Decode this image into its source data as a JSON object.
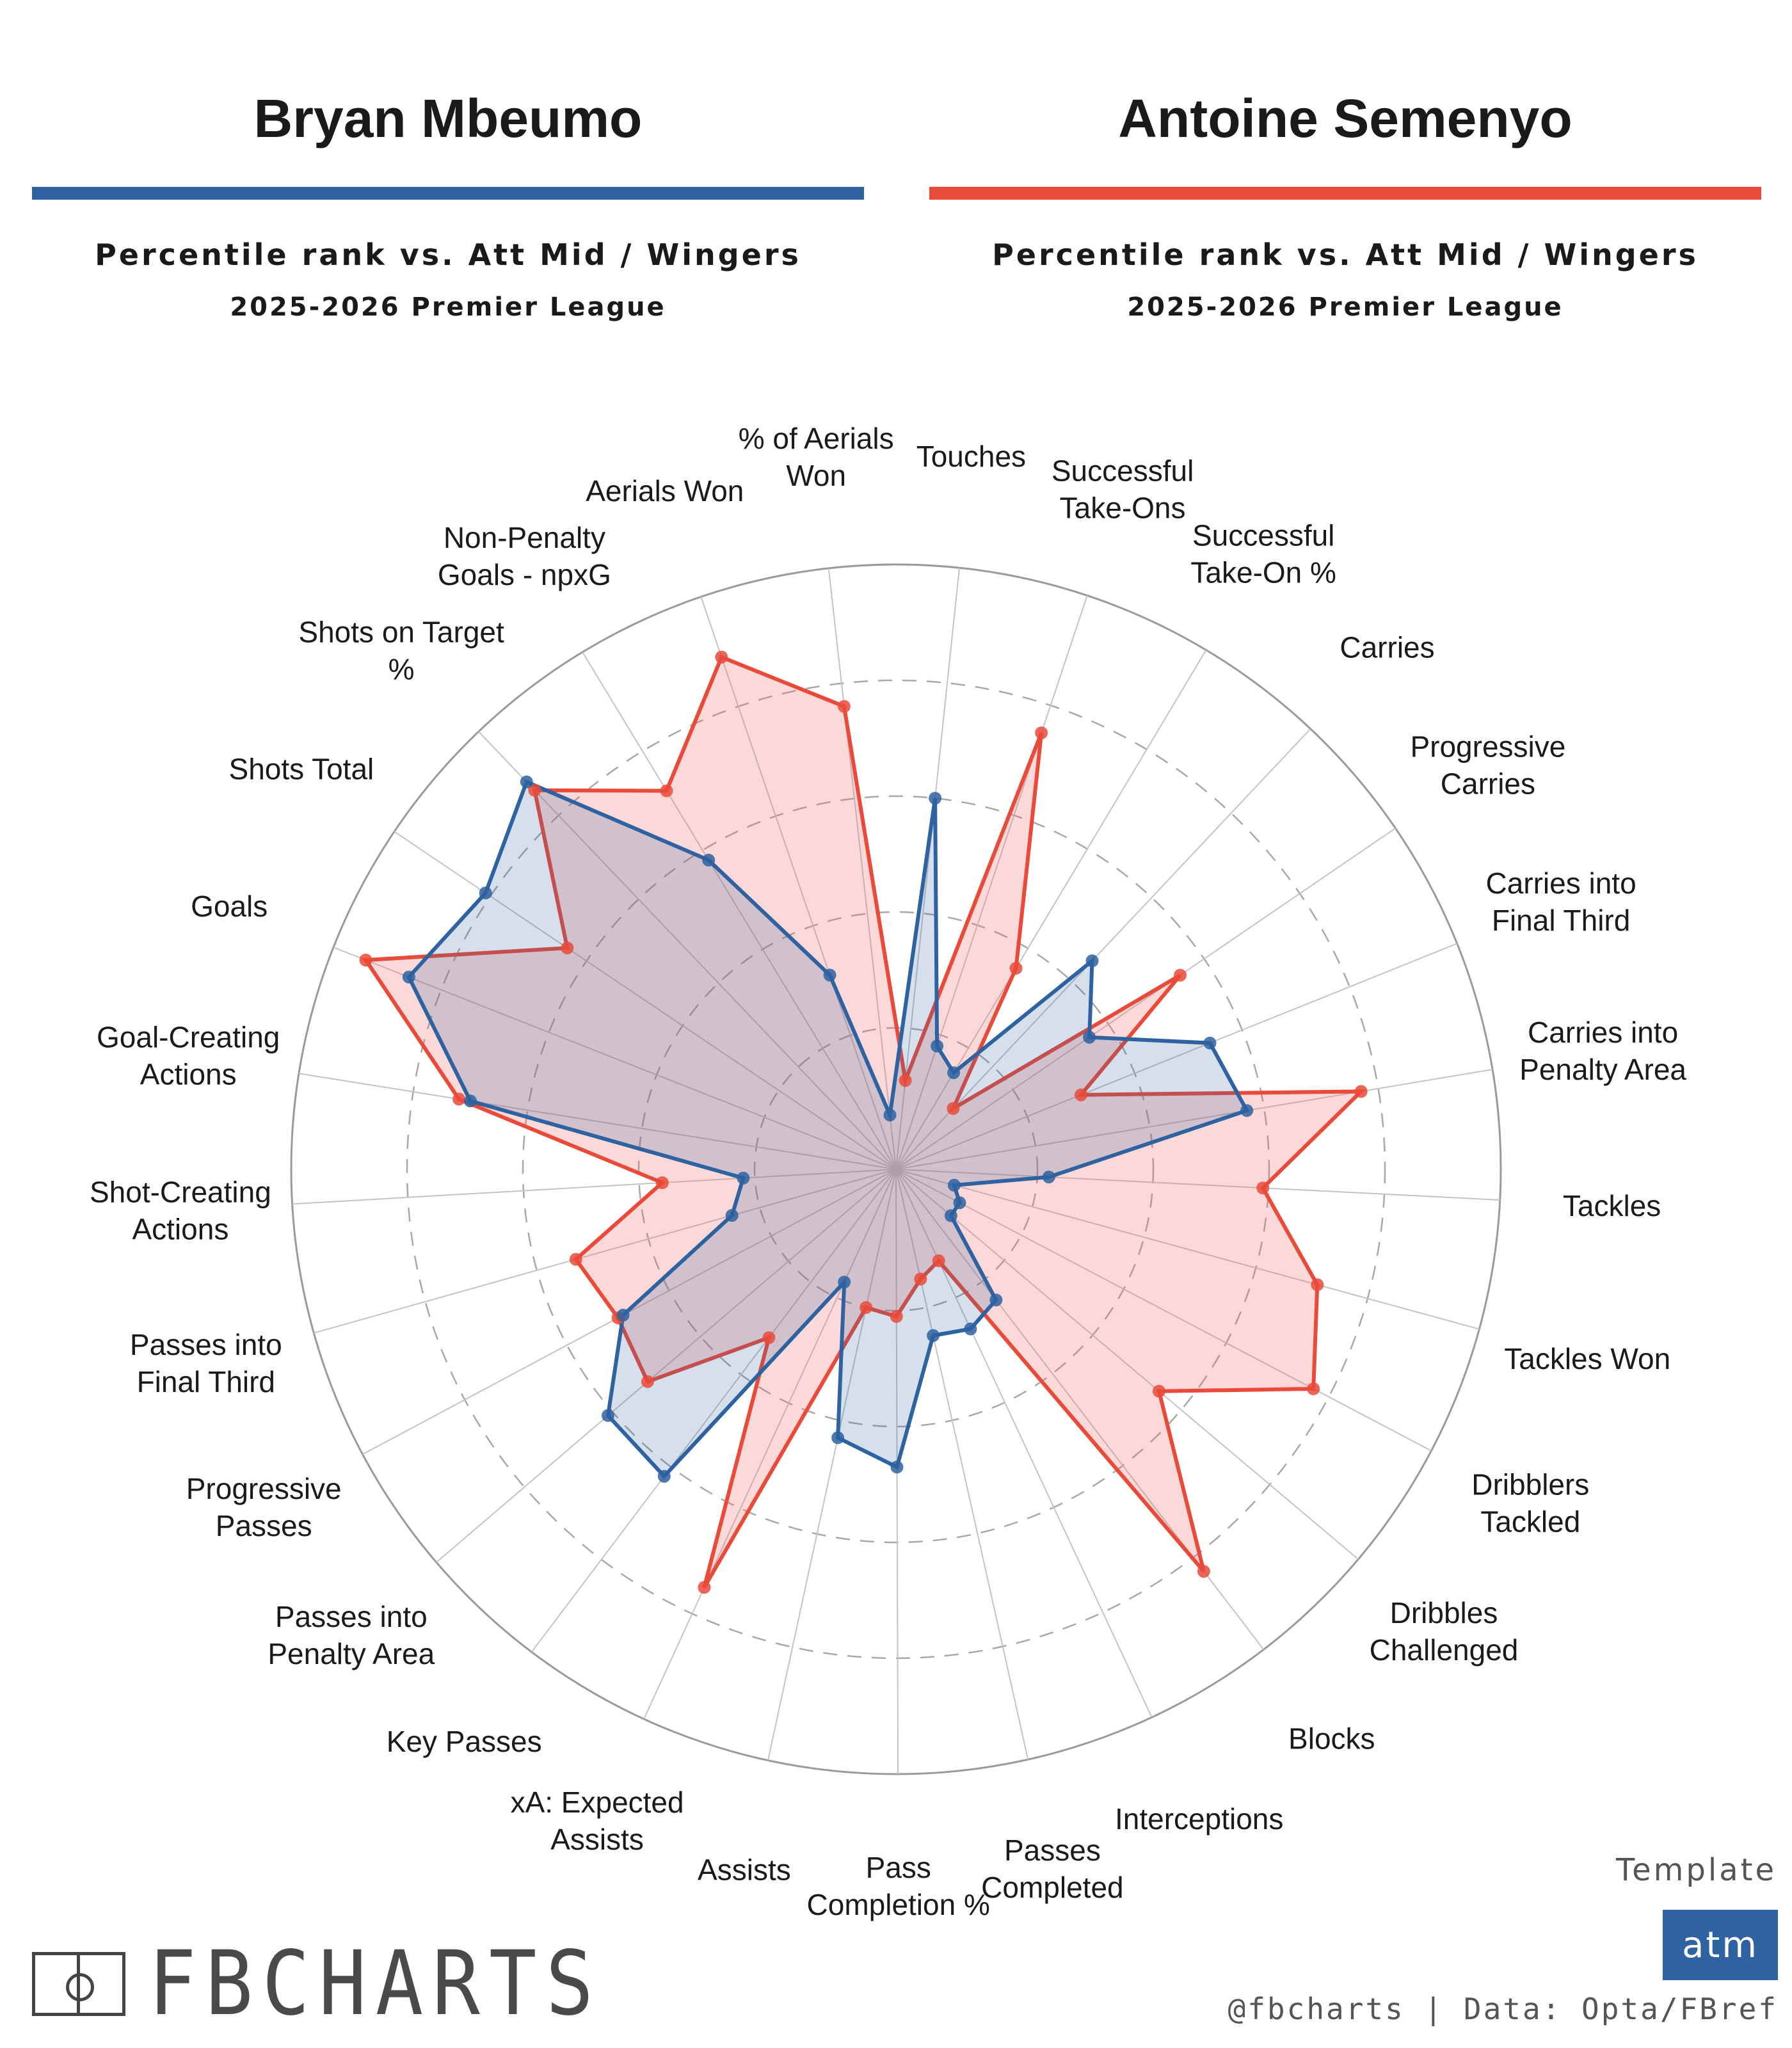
{
  "players": [
    {
      "name": "Bryan Mbeumo",
      "color": "#2e62a0",
      "fill": "rgba(46,98,160,0.20)",
      "subtitle": "Percentile rank vs. Att Mid / Wingers",
      "season": "2025-2026 Premier League"
    },
    {
      "name": "Antoine Semenyo",
      "color": "#ea4a3a",
      "fill": "rgba(240,110,110,0.26)",
      "subtitle": "Percentile rank vs. Att Mid / Wingers",
      "season": "2025-2026 Premier League"
    }
  ],
  "chart_data": {
    "type": "radar",
    "scale": "percentile",
    "rlim": [
      0,
      100
    ],
    "gridlines": [
      20,
      40,
      60,
      80
    ],
    "categories": [
      "Touches",
      "Successful Take-Ons",
      "Successful Take-On %",
      "Carries",
      "Progressive Carries",
      "Carries into Final Third",
      "Carries into Penalty Area",
      "Tackles",
      "Tackles Won",
      "Dribblers Tackled",
      "Dribbles Challenged",
      "Blocks",
      "Interceptions",
      "Passes Completed",
      "Pass Completion %",
      "Assists",
      "xA: Expected Assists",
      "Key Passes",
      "Passes into Penalty Area",
      "Progressive Passes",
      "Passes into Final Third",
      "Shot-Creating Actions",
      "Goal-Creating Actions",
      "Goals",
      "Shots Total",
      "Shots on Target %",
      "Non-Penalty Goals - npxG",
      "Aerials Won",
      "% of Aerials Won"
    ],
    "label_lines": [
      [
        "Touches"
      ],
      [
        "Successful",
        "Take-Ons"
      ],
      [
        "Successful",
        "Take-On %"
      ],
      [
        "Carries"
      ],
      [
        "Progressive",
        "Carries"
      ],
      [
        "Carries into",
        "Final Third"
      ],
      [
        "Carries into",
        "Penalty Area"
      ],
      [
        "Tackles"
      ],
      [
        "Tackles Won"
      ],
      [
        "Dribblers",
        "Tackled"
      ],
      [
        "Dribbles",
        "Challenged"
      ],
      [
        "Blocks"
      ],
      [
        "Interceptions"
      ],
      [
        "Passes",
        "Completed"
      ],
      [
        "Pass",
        "Completion %"
      ],
      [
        "Assists"
      ],
      [
        "xA: Expected",
        "Assists"
      ],
      [
        "Key Passes"
      ],
      [
        "Passes into",
        "Penalty Area"
      ],
      [
        "Progressive",
        "Passes"
      ],
      [
        "Passes into",
        "Final Third"
      ],
      [
        "Shot-Creating",
        "Actions"
      ],
      [
        "Goal-Creating",
        "Actions"
      ],
      [
        "Goals"
      ],
      [
        "Shots Total"
      ],
      [
        "Shots on Target",
        "%"
      ],
      [
        "Non-Penalty",
        "Goals - npxG"
      ],
      [
        "Aerials Won"
      ],
      [
        "% of Aerials",
        "Won"
      ]
    ],
    "series": [
      {
        "name": "Bryan Mbeumo",
        "values": [
          60,
          18,
          15,
          45,
          36,
          54,
          57,
          22,
          6,
          8,
          8,
          24,
          26,
          25,
          47,
          43,
          17,
          62,
          61,
          49,
          25,
          22,
          70,
          86,
          81,
          88,
          58,
          31,
          5
        ]
      },
      {
        "name": "Antoine Semenyo",
        "values": [
          11,
          75,
          36,
          10,
          55,
          30,
          77,
          59,
          71,
          77,
          55,
          83,
          13,
          15,
          21,
          20,
          75,
          32,
          52,
          50,
          53,
          36,
          72,
          94,
          64,
          86,
          72,
          89,
          76
        ]
      }
    ]
  },
  "footer": {
    "brand": "FBCHARTS",
    "template_label": "Template",
    "template_badge": "atm",
    "credit": "@fbcharts | Data: Opta/FBref"
  }
}
